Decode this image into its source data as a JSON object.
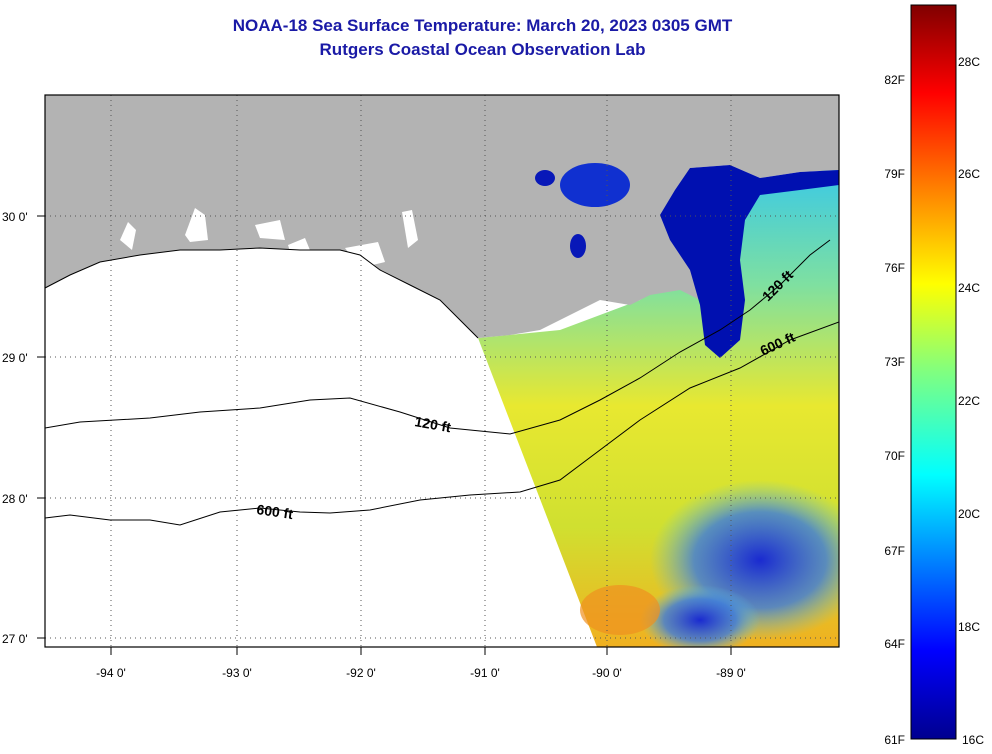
{
  "header": {
    "title": "NOAA-18 Sea Surface Temperature:  March 20, 2023 0305 GMT",
    "subtitle": "Rutgers Coastal Ocean Observation Lab"
  },
  "map": {
    "longitude_labels": [
      "-94 0'",
      "-93 0'",
      "-92 0'",
      "-91 0'",
      "-90 0'",
      "-89 0'"
    ],
    "latitude_labels": [
      "30 0'",
      "29 0'",
      "28 0'",
      "27 0'"
    ],
    "contour_labels": [
      "120 ft",
      "600 ft",
      "120 ft",
      "600 ft"
    ],
    "colors": {
      "land": "#b3b3b3",
      "frame": "#000000",
      "background": "#ffffff"
    }
  },
  "colorbar": {
    "fahrenheit_labels": [
      "82F",
      "79F",
      "76F",
      "73F",
      "70F",
      "67F",
      "64F",
      "61F"
    ],
    "celsius_labels": [
      "28C",
      "26C",
      "24C",
      "22C",
      "20C",
      "18C",
      "16C"
    ],
    "colors": [
      "#00008f",
      "#0000ff",
      "#0080ff",
      "#00ffff",
      "#80ff80",
      "#ffff00",
      "#ff8000",
      "#ff0000",
      "#800000"
    ]
  }
}
